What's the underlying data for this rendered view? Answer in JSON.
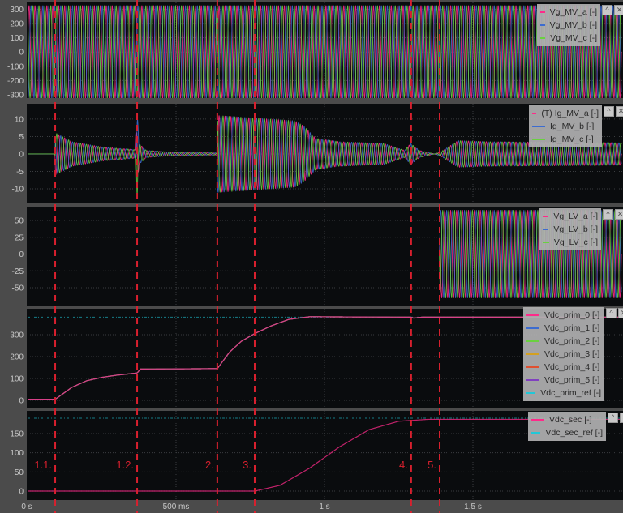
{
  "chart_data": [
    {
      "type": "line",
      "id": "vg_mv",
      "ylim": [
        -323,
        348
      ],
      "yticks": [
        -300,
        -200,
        -100,
        0,
        100,
        200,
        300
      ],
      "waveform": "three-phase-ac",
      "frequency_hz": 50,
      "envelope": [
        [
          0,
          325
        ],
        [
          2,
          325
        ]
      ],
      "series": [
        {
          "name": "Vg_MV_a  [-]",
          "color": "#ff2a8a"
        },
        {
          "name": "Vg_MV_b  [-]",
          "color": "#3c6cd0"
        },
        {
          "name": "Vg_MV_c  [-]",
          "color": "#6ad040"
        }
      ]
    },
    {
      "type": "line",
      "id": "ig_mv",
      "ylim": [
        -13.95,
        14.4
      ],
      "yticks": [
        -10,
        -5,
        0,
        5,
        10
      ],
      "waveform": "three-phase-ac",
      "frequency_hz": 50,
      "envelope": [
        [
          0,
          0
        ],
        [
          0.092,
          0
        ],
        [
          0.094,
          6
        ],
        [
          0.15,
          3.5
        ],
        [
          0.25,
          2
        ],
        [
          0.365,
          1.2
        ],
        [
          0.369,
          13
        ],
        [
          0.375,
          3
        ],
        [
          0.4,
          1
        ],
        [
          0.5,
          0.4
        ],
        [
          0.638,
          0.3
        ],
        [
          0.64,
          11
        ],
        [
          0.9,
          9.5
        ],
        [
          0.93,
          8
        ],
        [
          0.97,
          4.5
        ],
        [
          1.05,
          3.5
        ],
        [
          1.2,
          3
        ],
        [
          1.27,
          1
        ],
        [
          1.29,
          3
        ],
        [
          1.32,
          1
        ],
        [
          1.37,
          0
        ],
        [
          1.39,
          0.5
        ],
        [
          1.45,
          3.8
        ],
        [
          1.55,
          3.5
        ],
        [
          2,
          3.2
        ]
      ],
      "series": [
        {
          "name": "(T) Ig_MV_a  [-]",
          "color": "#ff2a8a"
        },
        {
          "name": "Ig_MV_b  [-]",
          "color": "#3c6cd0"
        },
        {
          "name": "Ig_MV_c  [-]",
          "color": "#6ad040"
        }
      ]
    },
    {
      "type": "line",
      "id": "vg_lv",
      "ylim": [
        -76.5,
        70.5
      ],
      "yticks": [
        -50,
        -25,
        0,
        25,
        50
      ],
      "waveform": "three-phase-ac",
      "frequency_hz": 50,
      "envelope": [
        [
          0,
          0
        ],
        [
          1.387,
          0
        ],
        [
          1.39,
          65
        ],
        [
          2,
          65
        ]
      ],
      "series": [
        {
          "name": "Vg_LV_a  [-]",
          "color": "#ff2a8a"
        },
        {
          "name": "Vg_LV_b  [-]",
          "color": "#3c6cd0"
        },
        {
          "name": "Vg_LV_c  [-]",
          "color": "#6ad040"
        }
      ]
    },
    {
      "type": "line",
      "id": "vdc_prim",
      "ylim": [
        -33.3,
        418.5
      ],
      "yticks": [
        0,
        100,
        200,
        300
      ],
      "waveform": "dc",
      "values": [
        [
          0,
          5
        ],
        [
          0.093,
          5
        ],
        [
          0.15,
          60
        ],
        [
          0.2,
          90
        ],
        [
          0.25,
          105
        ],
        [
          0.3,
          115
        ],
        [
          0.369,
          125
        ],
        [
          0.38,
          143
        ],
        [
          0.639,
          145
        ],
        [
          0.68,
          220
        ],
        [
          0.72,
          270
        ],
        [
          0.765,
          305
        ],
        [
          0.82,
          340
        ],
        [
          0.88,
          370
        ],
        [
          0.95,
          382
        ],
        [
          1.292,
          380
        ],
        [
          1.3,
          376
        ],
        [
          1.33,
          380
        ],
        [
          2,
          380
        ]
      ],
      "ref": 380,
      "series": [
        {
          "name": "Vdc_prim_0  [-]",
          "color": "#ff2a8a"
        },
        {
          "name": "Vdc_prim_1  [-]",
          "color": "#3c6cd0"
        },
        {
          "name": "Vdc_prim_2  [-]",
          "color": "#6ad040"
        },
        {
          "name": "Vdc_prim_3  [-]",
          "color": "#d4a020"
        },
        {
          "name": "Vdc_prim_4  [-]",
          "color": "#e05030"
        },
        {
          "name": "Vdc_prim_5  [-]",
          "color": "#8040c0"
        },
        {
          "name": "Vdc_prim_ref  [-]",
          "color": "#20c8d8",
          "dashed": true
        }
      ]
    },
    {
      "type": "line",
      "id": "vdc_sec",
      "ylim": [
        -23.2,
        209
      ],
      "yticks": [
        0,
        50,
        100,
        150
      ],
      "waveform": "dc",
      "values": [
        [
          0,
          0
        ],
        [
          0.765,
          0
        ],
        [
          0.85,
          15
        ],
        [
          0.95,
          60
        ],
        [
          1.05,
          115
        ],
        [
          1.15,
          160
        ],
        [
          1.25,
          182
        ],
        [
          1.35,
          187
        ],
        [
          2,
          187
        ]
      ],
      "ref": 190,
      "series": [
        {
          "name": "Vdc_sec  [-]",
          "color": "#ff2a8a"
        },
        {
          "name": "Vdc_sec_ref  [-]",
          "color": "#20c8d8",
          "dashed": true
        }
      ]
    }
  ],
  "x_axis": {
    "xlim": [
      0,
      2.0
    ],
    "ticks": [
      {
        "t": 0,
        "label": "0 s"
      },
      {
        "t": 0.5,
        "label": "500 ms"
      },
      {
        "t": 1.0,
        "label": "1 s"
      },
      {
        "t": 1.5,
        "label": "1.5 s"
      }
    ]
  },
  "events": [
    {
      "t": 0.093,
      "label": "1.1."
    },
    {
      "t": 0.369,
      "label": "1.2."
    },
    {
      "t": 0.639,
      "label": "2."
    },
    {
      "t": 0.765,
      "label": "3."
    },
    {
      "t": 1.292,
      "label": "4."
    },
    {
      "t": 1.388,
      "label": "5."
    }
  ],
  "event_color": "#d8202e",
  "legend_buttons": {
    "collapse": "^",
    "close": "✕"
  }
}
